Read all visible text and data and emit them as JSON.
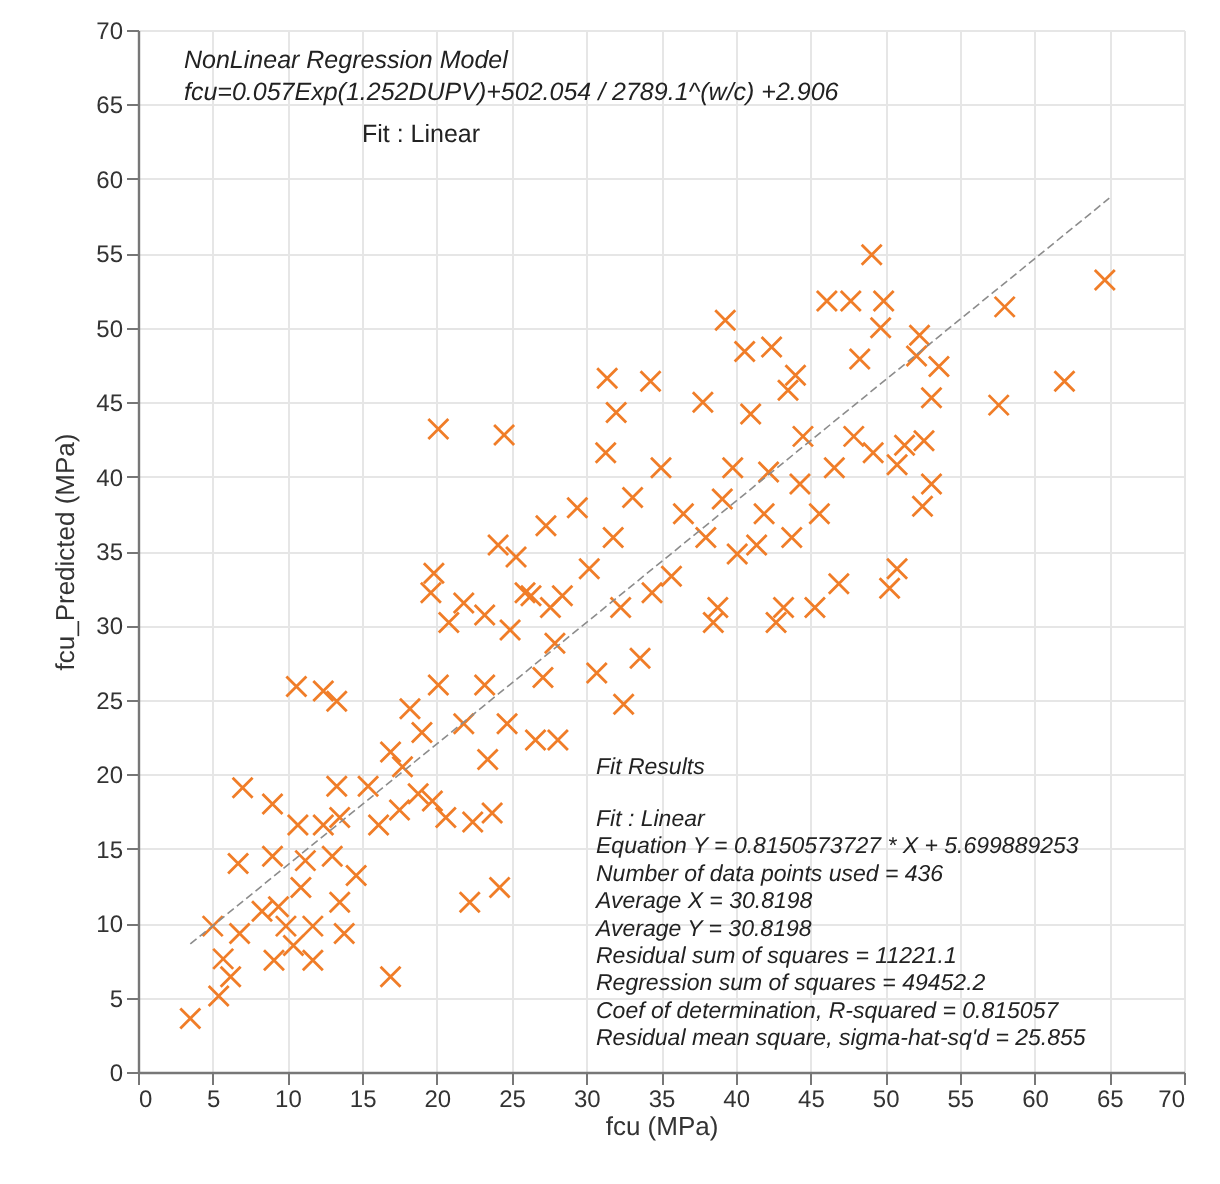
{
  "chart_data": {
    "type": "scatter",
    "xlabel": "fcu (MPa)",
    "ylabel": "fcu_Predicted (MPa)",
    "xlim": [
      0,
      70
    ],
    "ylim": [
      0,
      70
    ],
    "xticks": [
      0,
      5,
      10,
      15,
      20,
      25,
      30,
      35,
      40,
      45,
      50,
      55,
      60,
      65,
      70
    ],
    "yticks": [
      0,
      5,
      10,
      15,
      20,
      25,
      30,
      35,
      40,
      45,
      50,
      55,
      60,
      65,
      70
    ],
    "grid": true,
    "annotations": [
      "NonLinear Regression Model",
      "fcu=0.057Exp(1.252DUPV)+502.054 / 2789.1^(w/c) +2.906",
      "Fit : Linear",
      "Fit Results",
      "Fit : Linear",
      "Equation Y = 0.8150573727 * X + 5.699889253",
      "Number of data points used = 436",
      "Average X = 30.8198",
      "Average Y = 30.8198",
      "Residual sum of squares = 11221.1",
      "Regression sum of squares = 49452.2",
      "Coef of determination, R-squared = 0.815057",
      "Residual mean square, sigma-hat-sq'd = 25.855"
    ],
    "series": [
      {
        "color": "#f07d28",
        "marker": "cross",
        "x": [
          3.5,
          5,
          5.4,
          5.7,
          6.2,
          6.7,
          7.0,
          6.8,
          9.0,
          9.0,
          8.3,
          9.4,
          9.1,
          9.9,
          10.4,
          10.6,
          10.7,
          10.9,
          11.2,
          11.7,
          11.7,
          12.4,
          12.4,
          13.0,
          13.3,
          13.3,
          13.5,
          13.8,
          13.5,
          14.6,
          15.4,
          16.1,
          16.9,
          16.9,
          17.5,
          18.2,
          17.7,
          18.75,
          19.0,
          19.7,
          20.1,
          19.8,
          19.6,
          20.1,
          20.6,
          22.2,
          20.8,
          21.8,
          21.8,
          22.4,
          23.2,
          23.2,
          23.4,
          23.7,
          24.2,
          24.1,
          24.5,
          24.7,
          24.9,
          25.3,
          25.9,
          26.3,
          26.6,
          27.1,
          27.3,
          27.6,
          27.9,
          28.1,
          28.4,
          29.4,
          30.2,
          30.7,
          31.3,
          31.4,
          31.8,
          32.0,
          32.3,
          32.5,
          33.1,
          33.6,
          34.3,
          34.4,
          35.0,
          35.7,
          36.5,
          37.8,
          38.0,
          38.5,
          38.8,
          39.1,
          39.3,
          39.8,
          40.1,
          40.6,
          41.0,
          41.4,
          41.9,
          42.2,
          42.4,
          42.7,
          43.2,
          43.5,
          44.0,
          43.75,
          44.3,
          44.5,
          45.3,
          45.6,
          46.1,
          46.6,
          46.9,
          47.7,
          47.9,
          48.3,
          49.1,
          49.2,
          49.7,
          49.9,
          50.3,
          50.8,
          50.8,
          51.3,
          52.1,
          52.3,
          52.5,
          52.6,
          53.1,
          53.1,
          53.6,
          57.6,
          58.0,
          62.0,
          64.7
        ],
        "values": [
          3.6,
          9.8,
          5.1,
          7.6,
          6.4,
          14.0,
          19.1,
          9.3,
          18.0,
          14.5,
          10.8,
          11.1,
          7.5,
          9.8,
          8.5,
          25.9,
          16.6,
          12.4,
          14.2,
          7.5,
          9.8,
          25.6,
          16.6,
          14.5,
          24.9,
          19.2,
          11.4,
          9.3,
          17.1,
          13.2,
          19.2,
          16.6,
          6.4,
          21.5,
          17.6,
          24.4,
          20.5,
          18.7,
          22.8,
          18.2,
          43.2,
          33.5,
          32.2,
          26.0,
          17.1,
          11.4,
          30.2,
          31.5,
          23.4,
          16.8,
          26.0,
          30.7,
          21.0,
          17.4,
          12.4,
          35.4,
          42.8,
          23.4,
          29.7,
          34.6,
          32.2,
          32.0,
          22.3,
          26.5,
          36.7,
          31.2,
          28.8,
          22.3,
          32.0,
          37.9,
          33.8,
          26.8,
          41.6,
          46.6,
          35.9,
          44.3,
          31.2,
          24.7,
          38.6,
          27.8,
          46.4,
          32.2,
          40.6,
          33.3,
          37.5,
          45.0,
          35.9,
          30.2,
          31.2,
          38.5,
          50.5,
          40.6,
          34.8,
          48.4,
          44.2,
          35.4,
          37.5,
          40.3,
          48.7,
          30.2,
          31.2,
          45.8,
          46.8,
          35.9,
          39.5,
          42.7,
          31.2,
          37.5,
          51.8,
          40.6,
          32.8,
          51.8,
          42.7,
          47.9,
          54.9,
          41.6,
          50.0,
          51.8,
          32.5,
          33.8,
          40.8,
          42.1,
          48.1,
          49.5,
          38.0,
          42.4,
          39.5,
          45.3,
          47.4,
          44.8,
          51.4,
          46.4,
          53.2
        ]
      },
      {
        "type": "line",
        "color": "#8c8c8c",
        "line_style": "dashed",
        "x": [
          3.5,
          65
        ],
        "values": [
          8.6,
          58.7
        ]
      }
    ]
  }
}
